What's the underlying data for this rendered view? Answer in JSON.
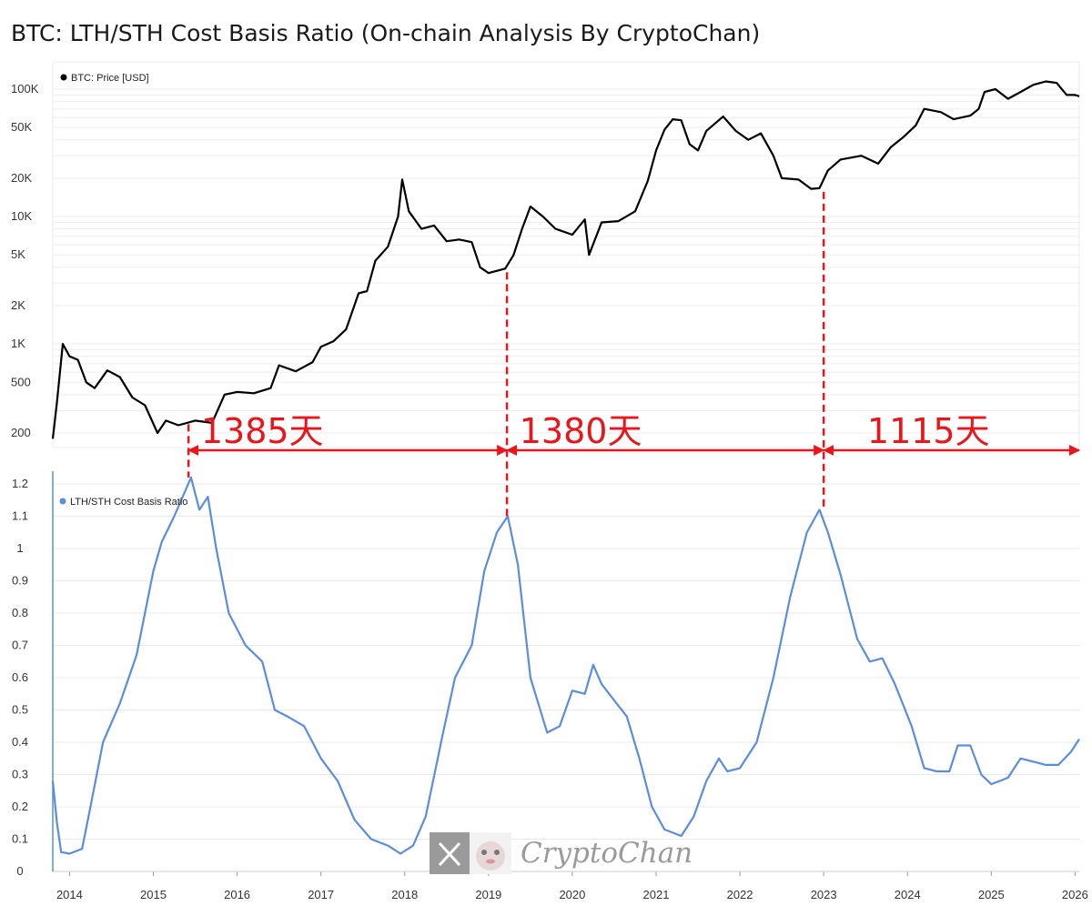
{
  "title": "BTC: LTH/STH Cost Basis Ratio (On-chain Analysis By CryptoChan)",
  "colors": {
    "price": "#000000",
    "ratio": "#5a8de0",
    "annotation": "#e8151b",
    "grid": "#e8e8e8"
  },
  "watermark": {
    "text": "CryptoChan",
    "logo_icon": "x-logo-icon",
    "avatar_icon": "mascot-avatar-icon"
  },
  "chart_data": [
    {
      "type": "line",
      "scale": "log",
      "legend": "BTC: Price [USD]",
      "legend_placement": "top-left",
      "y_ticks": [
        {
          "value": 100000,
          "label": "100K"
        },
        {
          "value": 50000,
          "label": "50K"
        },
        {
          "value": 20000,
          "label": "20K"
        },
        {
          "value": 10000,
          "label": "10K"
        },
        {
          "value": 5000,
          "label": "5K"
        },
        {
          "value": 2000,
          "label": "2K"
        },
        {
          "value": 1000,
          "label": "1K"
        },
        {
          "value": 500,
          "label": "500"
        },
        {
          "value": 200,
          "label": "200"
        }
      ],
      "grid": true,
      "series": [
        {
          "name": "BTC: Price [USD]",
          "points": [
            [
              2013.8,
              180
            ],
            [
              2013.85,
              350
            ],
            [
              2013.92,
              1000
            ],
            [
              2014.0,
              800
            ],
            [
              2014.1,
              750
            ],
            [
              2014.2,
              500
            ],
            [
              2014.3,
              450
            ],
            [
              2014.45,
              620
            ],
            [
              2014.6,
              550
            ],
            [
              2014.75,
              380
            ],
            [
              2014.9,
              330
            ],
            [
              2015.05,
              200
            ],
            [
              2015.15,
              250
            ],
            [
              2015.3,
              230
            ],
            [
              2015.5,
              250
            ],
            [
              2015.7,
              240
            ],
            [
              2015.85,
              400
            ],
            [
              2016.0,
              420
            ],
            [
              2016.2,
              410
            ],
            [
              2016.4,
              450
            ],
            [
              2016.5,
              680
            ],
            [
              2016.7,
              610
            ],
            [
              2016.9,
              720
            ],
            [
              2017.0,
              950
            ],
            [
              2017.15,
              1050
            ],
            [
              2017.3,
              1300
            ],
            [
              2017.45,
              2500
            ],
            [
              2017.55,
              2600
            ],
            [
              2017.65,
              4500
            ],
            [
              2017.8,
              5800
            ],
            [
              2017.92,
              10000
            ],
            [
              2017.97,
              19500
            ],
            [
              2018.05,
              11000
            ],
            [
              2018.2,
              8000
            ],
            [
              2018.35,
              8500
            ],
            [
              2018.5,
              6400
            ],
            [
              2018.65,
              6600
            ],
            [
              2018.8,
              6300
            ],
            [
              2018.9,
              4000
            ],
            [
              2019.0,
              3600
            ],
            [
              2019.2,
              3900
            ],
            [
              2019.3,
              5000
            ],
            [
              2019.4,
              8000
            ],
            [
              2019.5,
              12000
            ],
            [
              2019.65,
              10000
            ],
            [
              2019.8,
              8000
            ],
            [
              2020.0,
              7200
            ],
            [
              2020.15,
              9500
            ],
            [
              2020.2,
              5000
            ],
            [
              2020.35,
              9000
            ],
            [
              2020.55,
              9200
            ],
            [
              2020.75,
              11000
            ],
            [
              2020.9,
              19000
            ],
            [
              2021.0,
              33000
            ],
            [
              2021.1,
              48000
            ],
            [
              2021.2,
              58000
            ],
            [
              2021.3,
              57000
            ],
            [
              2021.4,
              37000
            ],
            [
              2021.5,
              33000
            ],
            [
              2021.6,
              47000
            ],
            [
              2021.8,
              61000
            ],
            [
              2021.95,
              47000
            ],
            [
              2022.1,
              40000
            ],
            [
              2022.25,
              45000
            ],
            [
              2022.4,
              30000
            ],
            [
              2022.5,
              20000
            ],
            [
              2022.7,
              19500
            ],
            [
              2022.85,
              16500
            ],
            [
              2022.95,
              16700
            ],
            [
              2023.05,
              23000
            ],
            [
              2023.2,
              28000
            ],
            [
              2023.45,
              30000
            ],
            [
              2023.65,
              26000
            ],
            [
              2023.8,
              35000
            ],
            [
              2023.95,
              42000
            ],
            [
              2024.1,
              52000
            ],
            [
              2024.2,
              70000
            ],
            [
              2024.4,
              66000
            ],
            [
              2024.55,
              58000
            ],
            [
              2024.75,
              62000
            ],
            [
              2024.85,
              70000
            ],
            [
              2024.92,
              95000
            ],
            [
              2025.05,
              100000
            ],
            [
              2025.2,
              84000
            ],
            [
              2025.35,
              95000
            ],
            [
              2025.5,
              108000
            ],
            [
              2025.65,
              115000
            ],
            [
              2025.78,
              112000
            ],
            [
              2025.9,
              90000
            ],
            [
              2026.0,
              90000
            ],
            [
              2026.05,
              88000
            ]
          ]
        }
      ]
    },
    {
      "type": "line",
      "legend": "LTH/STH Cost Basis Ratio",
      "legend_placement": "top-left",
      "ylim": [
        0,
        1.2
      ],
      "y_ticks": [
        {
          "value": 1.2,
          "label": "1.2"
        },
        {
          "value": 1.1,
          "label": "1.1"
        },
        {
          "value": 1.0,
          "label": "1"
        },
        {
          "value": 0.9,
          "label": "0.9"
        },
        {
          "value": 0.8,
          "label": "0.8"
        },
        {
          "value": 0.7,
          "label": "0.7"
        },
        {
          "value": 0.6,
          "label": "0.6"
        },
        {
          "value": 0.5,
          "label": "0.5"
        },
        {
          "value": 0.4,
          "label": "0.4"
        },
        {
          "value": 0.3,
          "label": "0.3"
        },
        {
          "value": 0.2,
          "label": "0.2"
        },
        {
          "value": 0.1,
          "label": "0.1"
        },
        {
          "value": 0,
          "label": "0"
        }
      ],
      "x_ticks": [
        {
          "value": 2014,
          "label": "2014"
        },
        {
          "value": 2015,
          "label": "2015"
        },
        {
          "value": 2016,
          "label": "2016"
        },
        {
          "value": 2017,
          "label": "2017"
        },
        {
          "value": 2018,
          "label": "2018"
        },
        {
          "value": 2019,
          "label": "2019"
        },
        {
          "value": 2020,
          "label": "2020"
        },
        {
          "value": 2021,
          "label": "2021"
        },
        {
          "value": 2022,
          "label": "2022"
        },
        {
          "value": 2023,
          "label": "2023"
        },
        {
          "value": 2024,
          "label": "2024"
        },
        {
          "value": 2025,
          "label": "2025"
        },
        {
          "value": 2026,
          "label": "2026"
        }
      ],
      "x_range": [
        2013.8,
        2026.05
      ],
      "grid": true,
      "series": [
        {
          "name": "LTH/STH Cost Basis Ratio",
          "points": [
            [
              2013.8,
              0.28
            ],
            [
              2013.85,
              0.15
            ],
            [
              2013.9,
              0.06
            ],
            [
              2014.0,
              0.055
            ],
            [
              2014.15,
              0.07
            ],
            [
              2014.25,
              0.2
            ],
            [
              2014.4,
              0.4
            ],
            [
              2014.6,
              0.52
            ],
            [
              2014.8,
              0.67
            ],
            [
              2015.0,
              0.93
            ],
            [
              2015.1,
              1.02
            ],
            [
              2015.25,
              1.1
            ],
            [
              2015.45,
              1.22
            ],
            [
              2015.55,
              1.12
            ],
            [
              2015.65,
              1.16
            ],
            [
              2015.75,
              1.0
            ],
            [
              2015.9,
              0.8
            ],
            [
              2016.1,
              0.7
            ],
            [
              2016.3,
              0.65
            ],
            [
              2016.45,
              0.5
            ],
            [
              2016.6,
              0.48
            ],
            [
              2016.8,
              0.45
            ],
            [
              2017.0,
              0.35
            ],
            [
              2017.2,
              0.28
            ],
            [
              2017.4,
              0.16
            ],
            [
              2017.6,
              0.1
            ],
            [
              2017.8,
              0.08
            ],
            [
              2017.95,
              0.055
            ],
            [
              2018.1,
              0.08
            ],
            [
              2018.25,
              0.17
            ],
            [
              2018.45,
              0.42
            ],
            [
              2018.6,
              0.6
            ],
            [
              2018.8,
              0.7
            ],
            [
              2018.95,
              0.93
            ],
            [
              2019.1,
              1.05
            ],
            [
              2019.23,
              1.1
            ],
            [
              2019.35,
              0.95
            ],
            [
              2019.5,
              0.6
            ],
            [
              2019.7,
              0.43
            ],
            [
              2019.85,
              0.45
            ],
            [
              2020.0,
              0.56
            ],
            [
              2020.15,
              0.55
            ],
            [
              2020.25,
              0.64
            ],
            [
              2020.35,
              0.58
            ],
            [
              2020.5,
              0.53
            ],
            [
              2020.65,
              0.48
            ],
            [
              2020.8,
              0.35
            ],
            [
              2020.95,
              0.2
            ],
            [
              2021.1,
              0.13
            ],
            [
              2021.3,
              0.11
            ],
            [
              2021.45,
              0.17
            ],
            [
              2021.6,
              0.28
            ],
            [
              2021.75,
              0.35
            ],
            [
              2021.85,
              0.31
            ],
            [
              2022.0,
              0.32
            ],
            [
              2022.2,
              0.4
            ],
            [
              2022.4,
              0.6
            ],
            [
              2022.6,
              0.85
            ],
            [
              2022.8,
              1.05
            ],
            [
              2022.95,
              1.12
            ],
            [
              2023.05,
              1.05
            ],
            [
              2023.2,
              0.92
            ],
            [
              2023.4,
              0.72
            ],
            [
              2023.55,
              0.65
            ],
            [
              2023.7,
              0.66
            ],
            [
              2023.85,
              0.58
            ],
            [
              2024.05,
              0.45
            ],
            [
              2024.2,
              0.32
            ],
            [
              2024.35,
              0.31
            ],
            [
              2024.5,
              0.31
            ],
            [
              2024.6,
              0.39
            ],
            [
              2024.75,
              0.39
            ],
            [
              2024.88,
              0.3
            ],
            [
              2025.0,
              0.27
            ],
            [
              2025.2,
              0.29
            ],
            [
              2025.35,
              0.35
            ],
            [
              2025.5,
              0.34
            ],
            [
              2025.65,
              0.33
            ],
            [
              2025.8,
              0.33
            ],
            [
              2025.95,
              0.37
            ],
            [
              2026.05,
              0.41
            ]
          ]
        }
      ]
    }
  ],
  "annotations": {
    "markers": [
      {
        "year": 2015.42,
        "label": "1385天",
        "label_center_year": 2016.3
      },
      {
        "year": 2019.22,
        "label": "1380天",
        "label_center_year": 2020.1
      },
      {
        "year": 2023.0,
        "label": "1115天",
        "label_center_year": 2024.25
      }
    ]
  }
}
